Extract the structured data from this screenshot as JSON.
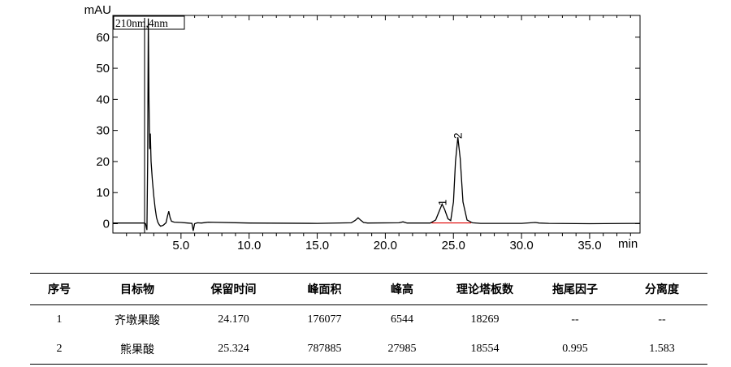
{
  "chart_data": {
    "type": "line",
    "ylabel": "mAU",
    "xlabel": "min",
    "detector_label": "210nm,4nm",
    "xlim": [
      0,
      38.7
    ],
    "ylim": [
      -3,
      67
    ],
    "yticks": [
      0,
      10,
      20,
      30,
      40,
      50,
      60
    ],
    "xticks": [
      5.0,
      10.0,
      15.0,
      20.0,
      25.0,
      30.0,
      35.0
    ],
    "xtick_labels": [
      "5.0",
      "10.0",
      "15.0",
      "20.0",
      "25.0",
      "30.0",
      "35.0"
    ],
    "series": [
      {
        "x": [
          0,
          2.3,
          2.35,
          2.4,
          2.5,
          2.55,
          2.6,
          2.65,
          2.7,
          2.75,
          2.8,
          2.9,
          3.0,
          3.1,
          3.2,
          3.3,
          3.4,
          3.5,
          3.7,
          3.9,
          4.0,
          4.1,
          4.2,
          4.3,
          4.5,
          5.0,
          5.5,
          5.8,
          5.9,
          6.0,
          6.2,
          6.5,
          7.0,
          10.0,
          15.0,
          17.5,
          17.8,
          18.0,
          18.2,
          18.4,
          18.7,
          21.0,
          21.3,
          21.6,
          23.3,
          23.7,
          24.0,
          24.17,
          24.35,
          24.6,
          24.8,
          25.0,
          25.15,
          25.324,
          25.5,
          25.7,
          26.0,
          26.4,
          27.0,
          30.0,
          31.0,
          31.3,
          32.0,
          35.0,
          38.7
        ],
        "y": [
          0.2,
          0.2,
          0.1,
          0,
          -2,
          20,
          66,
          40,
          24,
          29,
          20,
          14,
          9,
          5,
          2,
          0.5,
          -0.3,
          -0.8,
          -0.5,
          0.3,
          2.3,
          4,
          2,
          0.8,
          0.5,
          0.4,
          0.2,
          0.1,
          -2.3,
          0,
          0.3,
          0.2,
          0.5,
          0.2,
          0.1,
          0.3,
          1.1,
          1.9,
          1.1,
          0.4,
          0.2,
          0.3,
          0.6,
          0.2,
          0.2,
          1.2,
          4.5,
          6.3,
          4.6,
          1.6,
          1,
          7,
          20,
          27.8,
          21,
          7,
          1.2,
          0.3,
          0.1,
          0.1,
          0.4,
          0.2,
          0.1,
          0,
          0.1
        ]
      }
    ],
    "baseline_segments": [
      [
        23.4,
        24.75
      ],
      [
        24.75,
        26.3
      ]
    ],
    "peaks": [
      {
        "label": "1",
        "rt": 24.17,
        "height": 6.3
      },
      {
        "label": "2",
        "rt": 25.324,
        "height": 27.8
      }
    ]
  },
  "table": {
    "headers": [
      "序号",
      "目标物",
      "保留时间",
      "峰面积",
      "峰高",
      "理论塔板数",
      "拖尾因子",
      "分离度"
    ],
    "rows": [
      [
        "1",
        "齐墩果酸",
        "24.170",
        "176077",
        "6544",
        "18269",
        "--",
        "--"
      ],
      [
        "2",
        "熊果酸",
        "25.324",
        "787885",
        "27985",
        "18554",
        "0.995",
        "1.583"
      ]
    ]
  },
  "colors": {
    "trace": "#000000",
    "baseline": "#e00000"
  }
}
